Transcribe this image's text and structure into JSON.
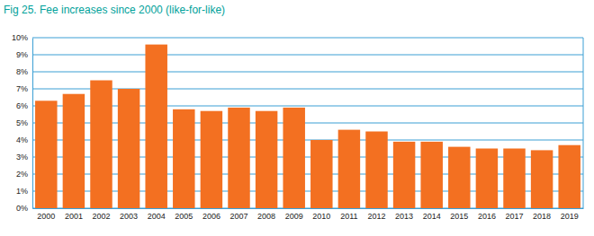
{
  "chart_data": {
    "type": "bar",
    "title": "Fig 25. Fee increases since 2000 (like-for-like)",
    "categories": [
      "2000",
      "2001",
      "2002",
      "2003",
      "2004",
      "2005",
      "2006",
      "2007",
      "2008",
      "2009",
      "2010",
      "2011",
      "2012",
      "2013",
      "2014",
      "2015",
      "2016",
      "2017",
      "2018",
      "2019"
    ],
    "values": [
      6.3,
      6.7,
      7.5,
      7.0,
      9.6,
      5.8,
      5.7,
      5.9,
      5.7,
      5.9,
      4.0,
      4.6,
      4.5,
      3.9,
      3.9,
      3.6,
      3.5,
      3.5,
      3.4,
      3.7
    ],
    "color": "#f37021",
    "ylim": [
      0,
      10
    ],
    "yticks": [
      {
        "value": 0,
        "label": "0%"
      },
      {
        "value": 1,
        "label": "1%"
      },
      {
        "value": 2,
        "label": "2%"
      },
      {
        "value": 3,
        "label": "3%"
      },
      {
        "value": 4,
        "label": "4%"
      },
      {
        "value": 5,
        "label": "5%"
      },
      {
        "value": 6,
        "label": "6%"
      },
      {
        "value": 7,
        "label": "7%"
      },
      {
        "value": 8,
        "label": "8%"
      },
      {
        "value": 9,
        "label": "9%"
      },
      {
        "value": 10,
        "label": "10%"
      }
    ],
    "grid": true
  }
}
